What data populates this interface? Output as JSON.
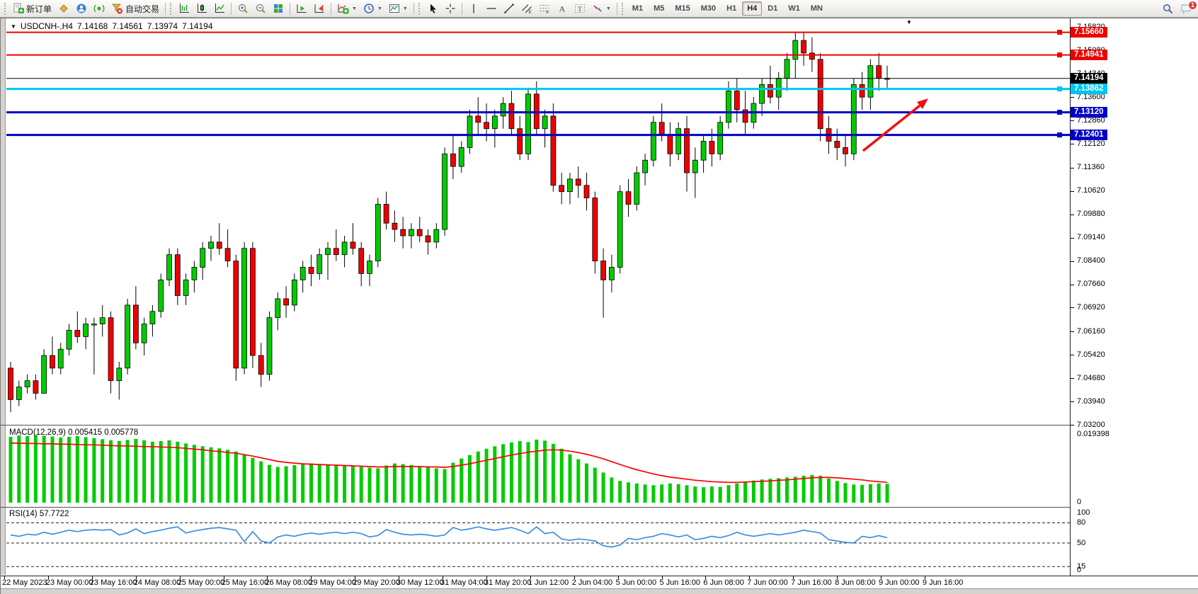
{
  "toolbar": {
    "new_order_label": "新订单",
    "autotrading_label": "自动交易",
    "timeframes": [
      "M1",
      "M5",
      "M15",
      "M30",
      "H1",
      "H4",
      "D1",
      "W1",
      "MN"
    ],
    "active_timeframe": "H4",
    "chat_badge": "1"
  },
  "chart": {
    "symbol": "USDCNH-,H4",
    "open": "7.14168",
    "high": "7.14561",
    "low": "7.13974",
    "close": "7.14194",
    "dropdown_marker": "▼",
    "shift_marker": "▼",
    "price_lines": [
      {
        "label": "7.15660",
        "value": 7.1566,
        "color": "#ee0000",
        "width": 2,
        "handle": true,
        "text_color": "#ffffff"
      },
      {
        "label": "7.14941",
        "value": 7.14941,
        "color": "#ee0000",
        "width": 2,
        "handle": true,
        "text_color": "#ffffff"
      },
      {
        "label": "7.14194",
        "value": 7.14194,
        "color": "#000000",
        "width": 1,
        "handle": false,
        "text_color": "#ffffff"
      },
      {
        "label": "7.13862",
        "value": 7.13862,
        "color": "#00c6f0",
        "width": 3,
        "handle": true,
        "text_color": "#ffffff"
      },
      {
        "label": "7.13120",
        "value": 7.1312,
        "color": "#0000c8",
        "width": 3,
        "handle": true,
        "text_color": "#ffffff"
      },
      {
        "label": "7.12401",
        "value": 7.12401,
        "color": "#0000c8",
        "width": 3,
        "handle": true,
        "text_color": "#ffffff"
      }
    ],
    "axis_ticks": [
      "7.15820",
      "7.15080",
      "7.14340",
      "7.13600",
      "7.12860",
      "7.12120",
      "7.11360",
      "7.10620",
      "7.09880",
      "7.09140",
      "7.08400",
      "7.07660",
      "7.06920",
      "7.06160",
      "7.05420",
      "7.04680",
      "7.03940",
      "7.03200"
    ],
    "time_labels": [
      "22 May 2023",
      "23 May 00:00",
      "23 May 16:00",
      "24 May 08:00",
      "25 May 00:00",
      "25 May 16:00",
      "26 May 08:00",
      "29 May 04:00",
      "29 May 20:00",
      "30 May 12:00",
      "31 May 04:00",
      "31 May 20:00",
      "1 Jun 12:00",
      "2 Jun 04:00",
      "5 Jun 00:00",
      "5 Jun 16:00",
      "6 Jun 08:00",
      "7 Jun 00:00",
      "7 Jun 16:00",
      "8 Jun 08:00",
      "9 Jun 00:00",
      "9 Jun 16:00"
    ],
    "annotation_arrow_color": "#ee1111"
  },
  "macd": {
    "label": "MACD(12,26,9) 0.005415 0.005778",
    "axis_max": "0.019398",
    "axis_min": "0"
  },
  "rsi": {
    "label": "RSI(14) 57.7722",
    "axis_labels": [
      "100",
      "80",
      "50",
      "15",
      "0"
    ],
    "level_values": [
      100,
      80,
      50,
      15,
      0
    ],
    "dashed_levels": [
      80,
      50,
      15
    ]
  },
  "chart_data": [
    {
      "type": "candlestick",
      "title": "USDCNH- H4",
      "ylim": [
        7.032,
        7.161
      ],
      "up_color": "#00cc00",
      "down_color": "#ee0000",
      "wick_color": "#000000",
      "levels": [
        7.1566,
        7.14941,
        7.14194,
        7.13862,
        7.1312,
        7.12401
      ],
      "ohlc": [
        [
          7.05,
          7.052,
          7.036,
          7.04
        ],
        [
          7.04,
          7.046,
          7.038,
          7.044
        ],
        [
          7.044,
          7.048,
          7.042,
          7.046
        ],
        [
          7.046,
          7.048,
          7.04,
          7.042
        ],
        [
          7.042,
          7.056,
          7.042,
          7.054
        ],
        [
          7.054,
          7.06,
          7.048,
          7.05
        ],
        [
          7.05,
          7.058,
          7.048,
          7.056
        ],
        [
          7.056,
          7.064,
          7.054,
          7.062
        ],
        [
          7.062,
          7.068,
          7.058,
          7.06
        ],
        [
          7.06,
          7.066,
          7.056,
          7.064
        ],
        [
          7.064,
          7.066,
          7.048,
          7.064
        ],
        [
          7.064,
          7.07,
          7.06,
          7.066
        ],
        [
          7.066,
          7.068,
          7.042,
          7.046
        ],
        [
          7.046,
          7.052,
          7.04,
          7.05
        ],
        [
          7.05,
          7.072,
          7.048,
          7.07
        ],
        [
          7.07,
          7.076,
          7.056,
          7.058
        ],
        [
          7.058,
          7.066,
          7.054,
          7.064
        ],
        [
          7.064,
          7.07,
          7.06,
          7.068
        ],
        [
          7.068,
          7.08,
          7.066,
          7.078
        ],
        [
          7.078,
          7.088,
          7.076,
          7.086
        ],
        [
          7.086,
          7.088,
          7.07,
          7.073
        ],
        [
          7.073,
          7.08,
          7.07,
          7.078
        ],
        [
          7.078,
          7.084,
          7.074,
          7.082
        ],
        [
          7.082,
          7.09,
          7.078,
          7.088
        ],
        [
          7.088,
          7.092,
          7.084,
          7.09
        ],
        [
          7.09,
          7.096,
          7.086,
          7.088
        ],
        [
          7.088,
          7.094,
          7.082,
          7.084
        ],
        [
          7.084,
          7.086,
          7.046,
          7.05
        ],
        [
          7.05,
          7.09,
          7.048,
          7.088
        ],
        [
          7.088,
          7.09,
          7.05,
          7.054
        ],
        [
          7.054,
          7.058,
          7.044,
          7.048
        ],
        [
          7.048,
          7.068,
          7.046,
          7.066
        ],
        [
          7.066,
          7.074,
          7.062,
          7.072
        ],
        [
          7.072,
          7.076,
          7.066,
          7.07
        ],
        [
          7.07,
          7.08,
          7.068,
          7.078
        ],
        [
          7.078,
          7.084,
          7.074,
          7.082
        ],
        [
          7.082,
          7.086,
          7.076,
          7.08
        ],
        [
          7.08,
          7.088,
          7.078,
          7.086
        ],
        [
          7.086,
          7.09,
          7.078,
          7.088
        ],
        [
          7.088,
          7.094,
          7.084,
          7.086
        ],
        [
          7.086,
          7.092,
          7.082,
          7.09
        ],
        [
          7.09,
          7.096,
          7.086,
          7.088
        ],
        [
          7.088,
          7.09,
          7.076,
          7.08
        ],
        [
          7.08,
          7.086,
          7.076,
          7.084
        ],
        [
          7.084,
          7.104,
          7.082,
          7.102
        ],
        [
          7.102,
          7.106,
          7.094,
          7.096
        ],
        [
          7.096,
          7.1,
          7.09,
          7.094
        ],
        [
          7.094,
          7.098,
          7.088,
          7.092
        ],
        [
          7.092,
          7.096,
          7.088,
          7.094
        ],
        [
          7.094,
          7.098,
          7.09,
          7.092
        ],
        [
          7.092,
          7.094,
          7.086,
          7.09
        ],
        [
          7.09,
          7.096,
          7.088,
          7.094
        ],
        [
          7.094,
          7.12,
          7.092,
          7.118
        ],
        [
          7.118,
          7.124,
          7.11,
          7.114
        ],
        [
          7.114,
          7.122,
          7.112,
          7.12
        ],
        [
          7.12,
          7.132,
          7.118,
          7.13
        ],
        [
          7.13,
          7.136,
          7.124,
          7.128
        ],
        [
          7.128,
          7.134,
          7.122,
          7.126
        ],
        [
          7.126,
          7.132,
          7.12,
          7.13
        ],
        [
          7.13,
          7.136,
          7.126,
          7.134
        ],
        [
          7.134,
          7.138,
          7.124,
          7.126
        ],
        [
          7.126,
          7.13,
          7.116,
          7.118
        ],
        [
          7.118,
          7.139,
          7.116,
          7.137
        ],
        [
          7.137,
          7.141,
          7.124,
          7.126
        ],
        [
          7.126,
          7.132,
          7.12,
          7.13
        ],
        [
          7.13,
          7.134,
          7.106,
          7.108
        ],
        [
          7.108,
          7.112,
          7.102,
          7.106
        ],
        [
          7.106,
          7.112,
          7.102,
          7.11
        ],
        [
          7.11,
          7.114,
          7.104,
          7.108
        ],
        [
          7.108,
          7.112,
          7.1,
          7.104
        ],
        [
          7.104,
          7.106,
          7.08,
          7.084
        ],
        [
          7.084,
          7.088,
          7.066,
          7.078
        ],
        [
          7.078,
          7.086,
          7.074,
          7.082
        ],
        [
          7.082,
          7.108,
          7.08,
          7.106
        ],
        [
          7.106,
          7.11,
          7.098,
          7.102
        ],
        [
          7.102,
          7.114,
          7.1,
          7.112
        ],
        [
          7.112,
          7.118,
          7.108,
          7.116
        ],
        [
          7.116,
          7.13,
          7.114,
          7.128
        ],
        [
          7.128,
          7.134,
          7.122,
          7.124
        ],
        [
          7.124,
          7.128,
          7.114,
          7.118
        ],
        [
          7.118,
          7.128,
          7.116,
          7.126
        ],
        [
          7.126,
          7.13,
          7.106,
          7.112
        ],
        [
          7.112,
          7.12,
          7.104,
          7.116
        ],
        [
          7.116,
          7.124,
          7.112,
          7.122
        ],
        [
          7.122,
          7.126,
          7.114,
          7.118
        ],
        [
          7.118,
          7.13,
          7.116,
          7.128
        ],
        [
          7.128,
          7.141,
          7.126,
          7.138
        ],
        [
          7.138,
          7.142,
          7.128,
          7.132
        ],
        [
          7.132,
          7.138,
          7.124,
          7.128
        ],
        [
          7.128,
          7.136,
          7.126,
          7.134
        ],
        [
          7.134,
          7.142,
          7.13,
          7.14
        ],
        [
          7.14,
          7.146,
          7.134,
          7.136
        ],
        [
          7.136,
          7.144,
          7.132,
          7.142
        ],
        [
          7.142,
          7.15,
          7.138,
          7.148
        ],
        [
          7.148,
          7.1566,
          7.142,
          7.154
        ],
        [
          7.154,
          7.1566,
          7.146,
          7.15
        ],
        [
          7.15,
          7.155,
          7.144,
          7.148
        ],
        [
          7.148,
          7.15,
          7.122,
          7.126
        ],
        [
          7.126,
          7.13,
          7.118,
          7.122
        ],
        [
          7.122,
          7.126,
          7.116,
          7.12
        ],
        [
          7.12,
          7.124,
          7.114,
          7.118
        ],
        [
          7.118,
          7.142,
          7.116,
          7.14
        ],
        [
          7.14,
          7.144,
          7.132,
          7.136
        ],
        [
          7.136,
          7.148,
          7.132,
          7.146
        ],
        [
          7.146,
          7.15,
          7.138,
          7.142
        ],
        [
          7.142,
          7.146,
          7.139,
          7.14194
        ]
      ]
    },
    {
      "type": "bar",
      "name": "MACD(12,26,9)",
      "ylim": [
        0,
        0.019398
      ],
      "bar_color": "#00cc00",
      "signal_color": "#ff0000",
      "current": [
        0.005415,
        0.005778
      ],
      "values": [
        0.0188,
        0.0192,
        0.019,
        0.0193,
        0.0191,
        0.0189,
        0.0186,
        0.0188,
        0.019,
        0.0187,
        0.0184,
        0.0181,
        0.0178,
        0.0176,
        0.0179,
        0.0182,
        0.0178,
        0.0174,
        0.0176,
        0.0178,
        0.0174,
        0.0169,
        0.0165,
        0.0161,
        0.0158,
        0.0155,
        0.0151,
        0.0146,
        0.0136,
        0.0128,
        0.0118,
        0.0108,
        0.0102,
        0.0104,
        0.0107,
        0.011,
        0.0112,
        0.011,
        0.0108,
        0.0106,
        0.0105,
        0.0104,
        0.0102,
        0.01,
        0.0098,
        0.0106,
        0.0112,
        0.011,
        0.0107,
        0.0104,
        0.0101,
        0.0098,
        0.0096,
        0.0114,
        0.0126,
        0.0136,
        0.0146,
        0.0154,
        0.0161,
        0.0167,
        0.0172,
        0.0176,
        0.0173,
        0.018,
        0.0177,
        0.0168,
        0.0154,
        0.0138,
        0.0124,
        0.0112,
        0.01,
        0.0086,
        0.0072,
        0.0062,
        0.0058,
        0.0055,
        0.0052,
        0.005,
        0.0052,
        0.0055,
        0.0053,
        0.005,
        0.0046,
        0.0044,
        0.0046,
        0.0045,
        0.005,
        0.0055,
        0.006,
        0.0063,
        0.0066,
        0.0068,
        0.007,
        0.0072,
        0.0074,
        0.0077,
        0.0079,
        0.0077,
        0.0069,
        0.0062,
        0.0056,
        0.0052,
        0.0051,
        0.0053,
        0.0055,
        0.0054
      ],
      "signal": [
        0.017,
        0.017,
        0.0169,
        0.0169,
        0.0168,
        0.0168,
        0.0167,
        0.0167,
        0.0166,
        0.0165,
        0.0165,
        0.0164,
        0.0163,
        0.0162,
        0.0162,
        0.0161,
        0.016,
        0.016,
        0.0159,
        0.0158,
        0.0157,
        0.0155,
        0.0153,
        0.0151,
        0.0148,
        0.0146,
        0.0143,
        0.0141,
        0.0137,
        0.0133,
        0.0128,
        0.0123,
        0.0118,
        0.0115,
        0.0113,
        0.0111,
        0.011,
        0.0109,
        0.0108,
        0.0107,
        0.0106,
        0.0105,
        0.0104,
        0.0103,
        0.0102,
        0.0102,
        0.0103,
        0.0103,
        0.0103,
        0.0103,
        0.0102,
        0.0102,
        0.0101,
        0.0103,
        0.0107,
        0.0111,
        0.0116,
        0.0121,
        0.0126,
        0.0131,
        0.0136,
        0.014,
        0.0144,
        0.0147,
        0.015,
        0.0151,
        0.015,
        0.0147,
        0.0143,
        0.0138,
        0.0132,
        0.0125,
        0.0117,
        0.0109,
        0.0101,
        0.0094,
        0.0088,
        0.0082,
        0.0077,
        0.0073,
        0.007,
        0.0067,
        0.0064,
        0.0062,
        0.006,
        0.0059,
        0.0058,
        0.0058,
        0.0059,
        0.006,
        0.0061,
        0.0062,
        0.0064,
        0.0065,
        0.0067,
        0.0069,
        0.0071,
        0.0072,
        0.0072,
        0.0071,
        0.0069,
        0.0067,
        0.0065,
        0.0062,
        0.006,
        0.0058
      ]
    },
    {
      "type": "line",
      "name": "RSI(14)",
      "ylim": [
        0,
        100
      ],
      "color": "#3d8fe0",
      "current": 57.7722,
      "values": [
        62,
        60,
        63,
        62,
        66,
        63,
        66,
        69,
        67,
        69,
        70,
        69,
        70,
        62,
        65,
        71,
        64,
        67,
        69,
        72,
        74,
        65,
        68,
        70,
        72,
        73,
        71,
        69,
        52,
        67,
        53,
        50,
        59,
        62,
        60,
        63,
        65,
        63,
        65,
        66,
        64,
        66,
        64,
        59,
        61,
        70,
        66,
        63,
        62,
        63,
        62,
        60,
        62,
        73,
        69,
        71,
        74,
        71,
        69,
        71,
        73,
        69,
        64,
        74,
        64,
        66,
        56,
        54,
        56,
        55,
        53,
        46,
        44,
        47,
        57,
        55,
        58,
        60,
        64,
        62,
        59,
        62,
        55,
        57,
        60,
        58,
        61,
        66,
        62,
        60,
        62,
        64,
        62,
        64,
        66,
        69,
        67,
        65,
        55,
        53,
        51,
        50,
        60,
        58,
        61,
        57.77
      ]
    }
  ]
}
